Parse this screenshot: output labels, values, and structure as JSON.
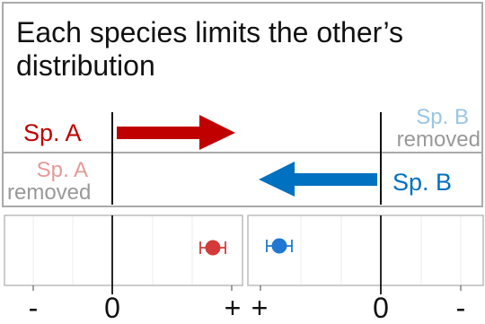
{
  "title": "Each species limits the other’s distribution",
  "rows": {
    "top": {
      "left_label": "Sp. A",
      "right_label_line1": "Sp. B",
      "right_label_line2": "removed"
    },
    "bottom": {
      "left_label_line1": "Sp. A",
      "left_label_line2": "removed",
      "right_label": "Sp. B"
    }
  },
  "colors": {
    "sp_a": "#c00000",
    "sp_a_faded": "#e59999",
    "sp_b": "#0070c0",
    "sp_b_faded": "#99c5e6",
    "removed_gray": "#999999",
    "frame": "#aaaaaa",
    "point_a": "#d43a3a",
    "point_b": "#1f78d1"
  },
  "panels": {
    "left": {
      "tick_labels": [
        "-",
        "0",
        "+"
      ],
      "point": 0.8,
      "error": [
        0.7,
        0.92
      ],
      "range": [
        -1,
        1
      ]
    },
    "right": {
      "tick_labels": [
        "+",
        "0",
        "-"
      ],
      "point": 0.72,
      "error": [
        0.62,
        0.82
      ],
      "range": [
        1,
        -1
      ]
    }
  }
}
